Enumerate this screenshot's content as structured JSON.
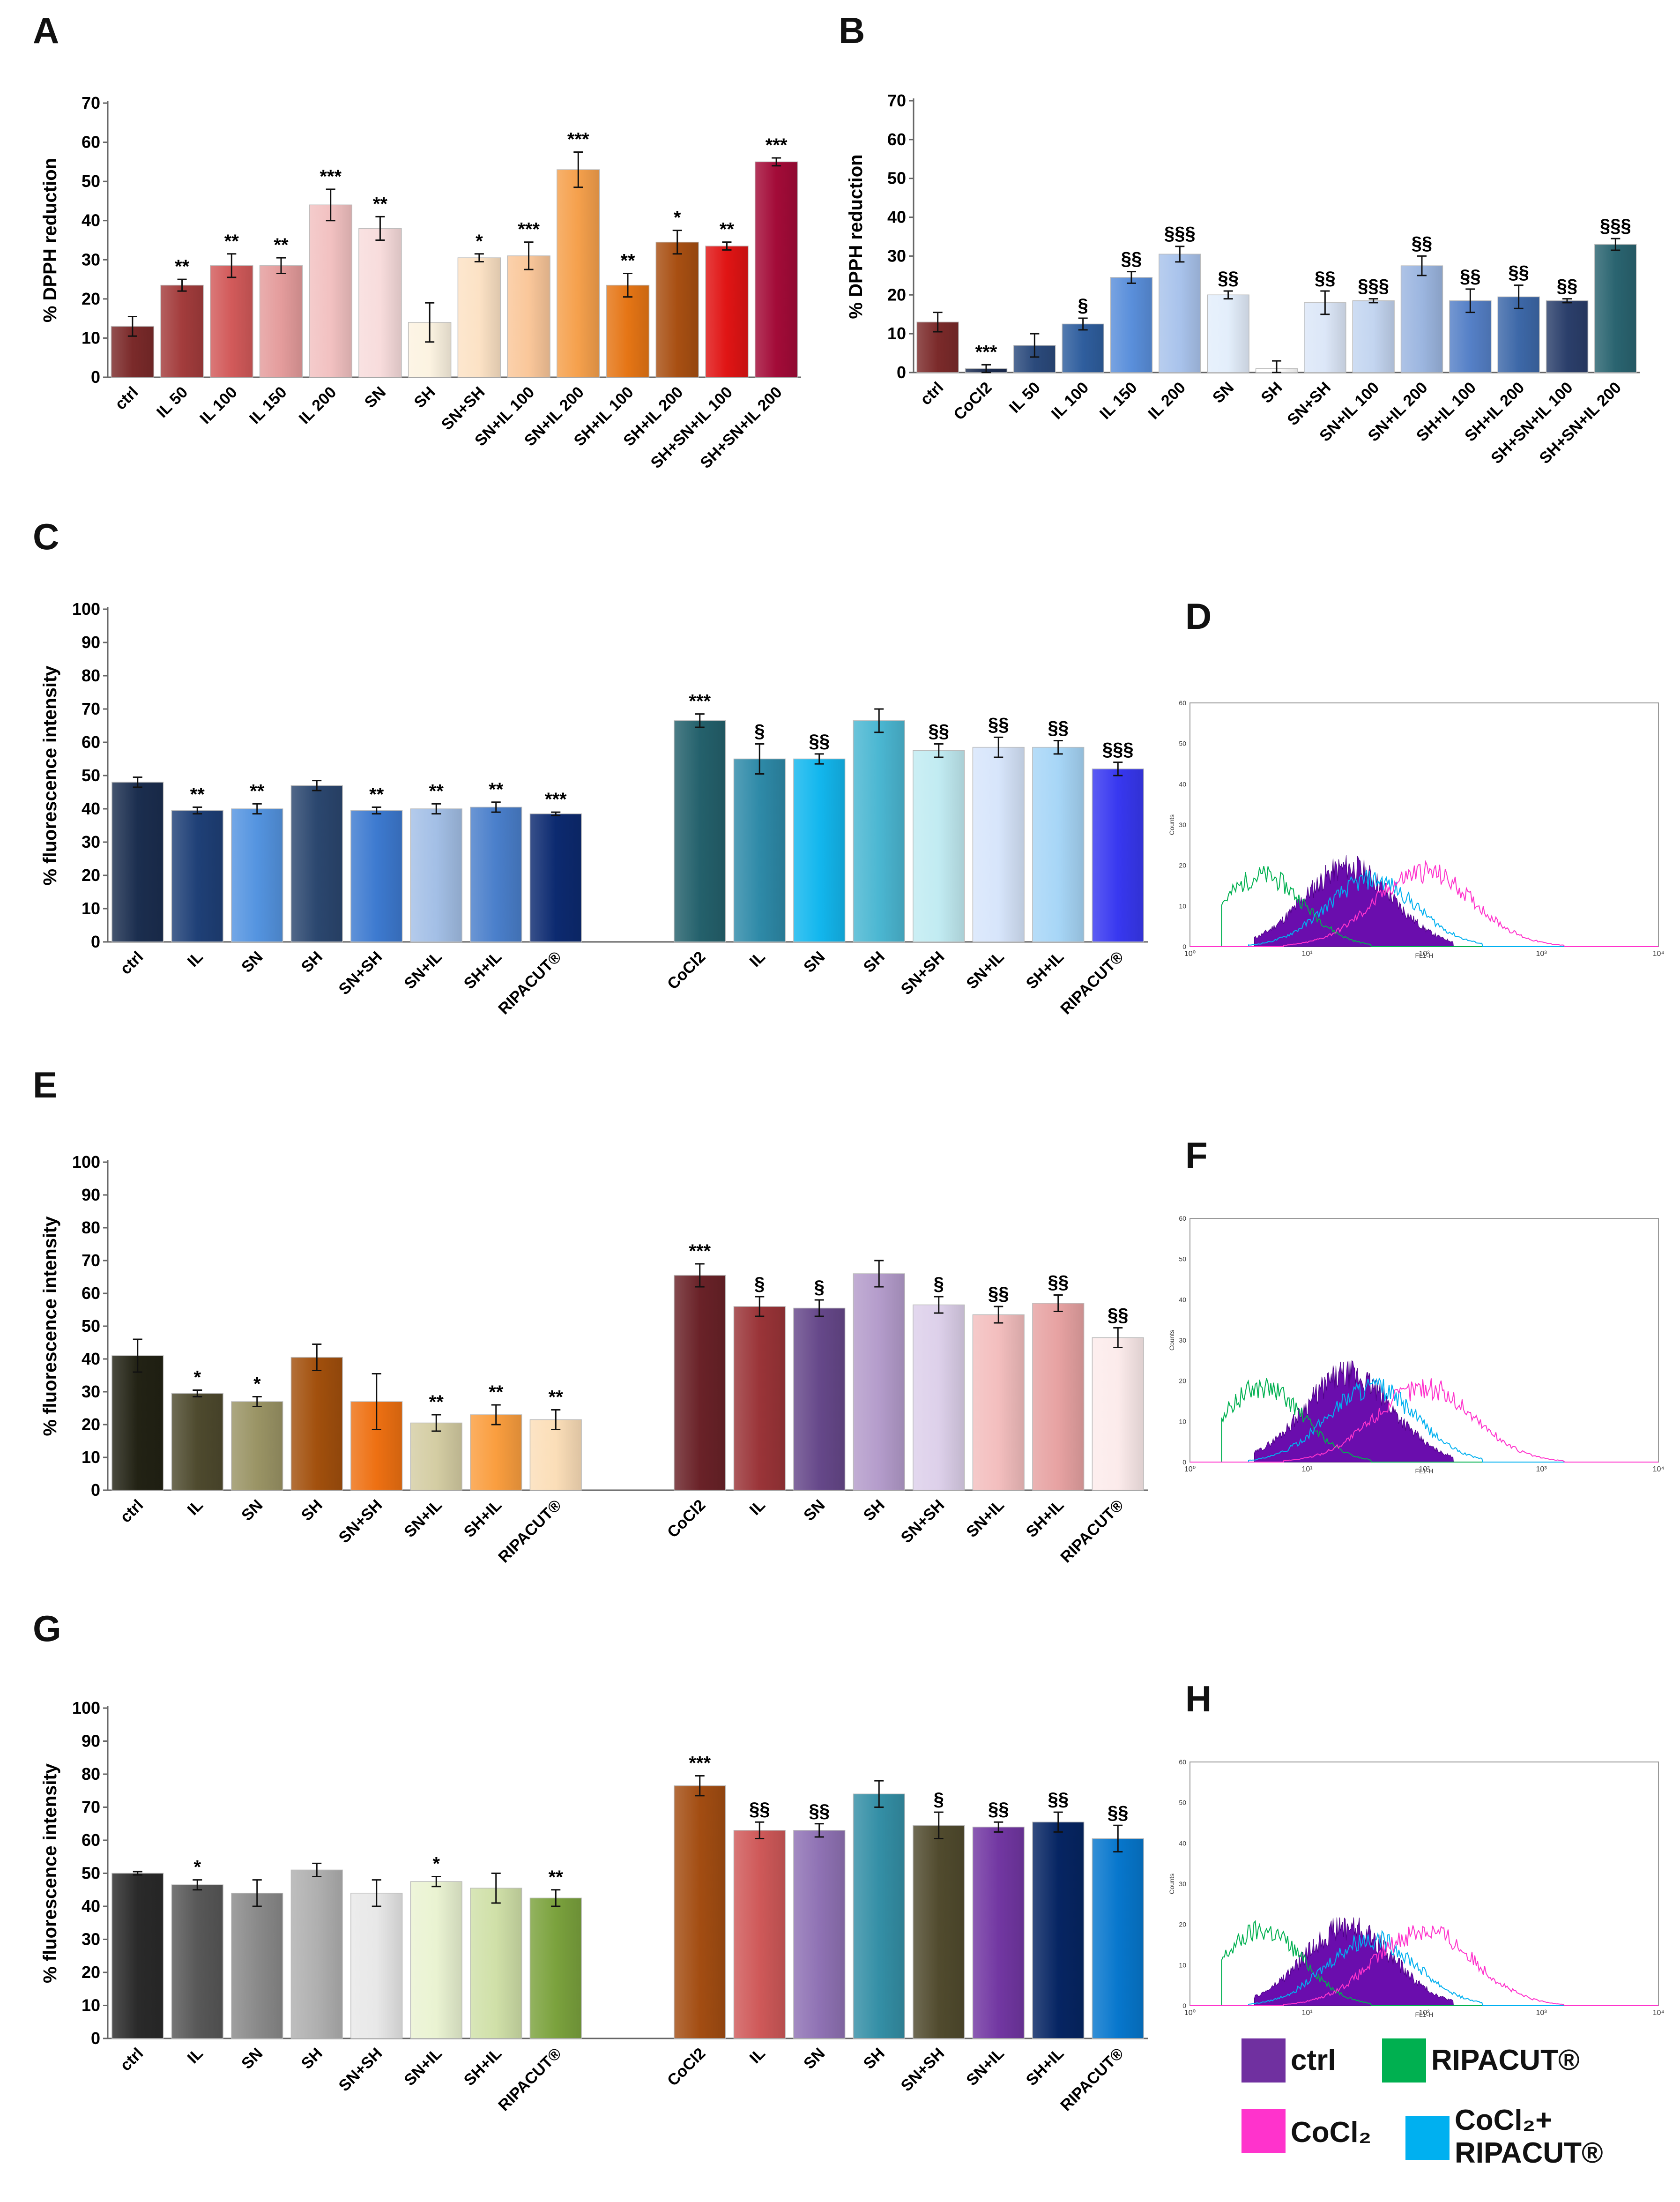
{
  "panels": {
    "A": {
      "label": "A"
    },
    "B": {
      "label": "B"
    },
    "C": {
      "label": "C"
    },
    "D": {
      "label": "D"
    },
    "E": {
      "label": "E"
    },
    "F": {
      "label": "F"
    },
    "G": {
      "label": "G"
    },
    "H": {
      "label": "H"
    }
  },
  "chart_data": [
    {
      "id": "A",
      "type": "bar",
      "ylabel": "% DPPH reduction",
      "ylim": [
        0,
        70
      ],
      "yticks": [
        0,
        10,
        20,
        30,
        40,
        50,
        60,
        70
      ],
      "categories": [
        "ctrl",
        "IL 50",
        "IL 100",
        "IL 150",
        "IL 200",
        "SN",
        "SH",
        "SN+SH",
        "SN+IL 100",
        "SN+IL 200",
        "SH+IL 100",
        "SH+IL 200",
        "SH+SN+IL 100",
        "SH+SN+IL 200"
      ],
      "values": [
        13,
        23.5,
        28.5,
        28.5,
        44,
        38,
        14,
        30.5,
        31,
        53,
        23.5,
        34.5,
        33.5,
        55
      ],
      "errors": [
        2.5,
        1.5,
        3,
        2,
        4,
        3,
        5,
        1,
        3.5,
        4.5,
        3,
        3,
        1,
        1
      ],
      "labels": [
        "",
        "**",
        "**",
        "**",
        "***",
        "**",
        "",
        "*",
        "***",
        "***",
        "**",
        "*",
        "**",
        "***"
      ],
      "colors": [
        "#7B2A2A",
        "#A33C3C",
        "#D25A5A",
        "#E49C9C",
        "#F2C1C1",
        "#F8DCDC",
        "#FCF3E1",
        "#FCE2C5",
        "#FAC79A",
        "#F5A04C",
        "#E57515",
        "#A84F12",
        "#E01414",
        "#A30B38"
      ]
    },
    {
      "id": "B",
      "type": "bar",
      "ylabel": "% DPPH reduction",
      "ylim": [
        0,
        70
      ],
      "yticks": [
        0,
        10,
        20,
        30,
        40,
        50,
        60,
        70
      ],
      "categories": [
        "ctrl",
        "CoCl2",
        "IL 50",
        "IL 100",
        "IL 150",
        "IL 200",
        "SN",
        "SH",
        "SN+SH",
        "SN+IL 100",
        "SN+IL 200",
        "SH+IL 100",
        "SH+IL 200",
        "SH+SN+IL 100",
        "SH+SN+IL 200"
      ],
      "values": [
        13,
        1,
        7,
        12.5,
        24.5,
        30.5,
        20,
        1,
        18,
        18.5,
        27.5,
        18.5,
        19.5,
        18.5,
        33
      ],
      "errors": [
        2.5,
        1,
        3,
        1.5,
        1.5,
        2,
        1,
        2,
        3,
        0.5,
        2.5,
        3,
        3,
        0.5,
        1.5
      ],
      "labels": [
        "",
        "***",
        "",
        "§",
        "§§",
        "§§§",
        "§§",
        "",
        "§§",
        "§§§",
        "§§",
        "§§",
        "§§",
        "§§",
        "§§§"
      ],
      "colors": [
        "#7B2A2A",
        "#1C2D52",
        "#2B4A7C",
        "#2F5E9E",
        "#5A8FDB",
        "#A9C3EC",
        "#E3EEFB",
        "#FFFFFF",
        "#DCE7F8",
        "#C3D5F0",
        "#9CB6E0",
        "#5580C7",
        "#3D68A8",
        "#2B3F6B",
        "#2A6470"
      ]
    },
    {
      "id": "C",
      "type": "bar",
      "ylabel": "% fluorescence intensity",
      "ylim": [
        0,
        100
      ],
      "yticks": [
        0,
        10,
        20,
        30,
        40,
        50,
        60,
        70,
        80,
        90,
        100
      ],
      "categories": [
        "ctrl",
        "IL",
        "SN",
        "SH",
        "SN+SH",
        "SN+IL",
        "SH+IL",
        "RIPACUT®",
        "CoCl2",
        "IL",
        "SN",
        "SH",
        "SN+SH",
        "SN+IL",
        "SH+IL",
        "RIPACUT®"
      ],
      "values": [
        48,
        39.5,
        40,
        47,
        39.5,
        40,
        40.5,
        38.5,
        66.5,
        55,
        55,
        66.5,
        57.5,
        58.5,
        58.5,
        52
      ],
      "errors": [
        1.5,
        1,
        1.5,
        1.5,
        1,
        1.5,
        1.5,
        0.5,
        2,
        4.5,
        1.5,
        3.5,
        2,
        3,
        2,
        2
      ],
      "labels": [
        "",
        "**",
        "**",
        "",
        "**",
        "**",
        "**",
        "***",
        "***",
        "§",
        "§§",
        "",
        "§§",
        "§§",
        "§§",
        "§§§"
      ],
      "colors": [
        "#1B2E4F",
        "#1F4077",
        "#5494E0",
        "#2B476F",
        "#3D7AD0",
        "#A3BFE6",
        "#4A7FCB",
        "#0C2A70",
        "#24616C",
        "#2E8AA8",
        "#13B7EE",
        "#4BB7D2",
        "#C1EBF2",
        "#D7E5FB",
        "#A7D6F7",
        "#3838F0"
      ]
    },
    {
      "id": "E",
      "type": "bar",
      "ylabel": "% fluorescence intensity",
      "ylim": [
        0,
        100
      ],
      "yticks": [
        0,
        10,
        20,
        30,
        40,
        50,
        60,
        70,
        80,
        90,
        100
      ],
      "categories": [
        "ctrl",
        "IL",
        "SN",
        "SH",
        "SN+SH",
        "SN+IL",
        "SH+IL",
        "RIPACUT®",
        "CoCl2",
        "IL",
        "SN",
        "SH",
        "SN+SH",
        "SN+IL",
        "SH+IL",
        "RIPACUT®"
      ],
      "values": [
        41,
        29.5,
        27,
        40.5,
        27,
        20.5,
        23,
        21.5,
        65.5,
        56,
        55.5,
        66,
        56.5,
        53.5,
        57,
        46.5
      ],
      "errors": [
        5,
        1,
        1.5,
        4,
        8.5,
        2.5,
        3,
        3,
        3.5,
        3,
        2.5,
        4,
        2.5,
        2.5,
        2.5,
        3
      ],
      "labels": [
        "",
        "*",
        "*",
        "",
        "",
        "**",
        "**",
        "**",
        "***",
        "§",
        "§",
        "",
        "§",
        "§§",
        "§§",
        "§§"
      ],
      "colors": [
        "#222214",
        "#4E4A2E",
        "#9A9465",
        "#A2500D",
        "#EE7012",
        "#D4CDA3",
        "#FA9E3F",
        "#FBDEB8",
        "#6A2228",
        "#9A3438",
        "#66488A",
        "#B49CCB",
        "#DDD0EA",
        "#F3BEBE",
        "#E7A2A2",
        "#FCEBEB"
      ]
    },
    {
      "id": "G",
      "type": "bar",
      "ylabel": "% fluorescence intensity",
      "ylim": [
        0,
        100
      ],
      "yticks": [
        0,
        10,
        20,
        30,
        40,
        50,
        60,
        70,
        80,
        90,
        100
      ],
      "categories": [
        "ctrl",
        "IL",
        "SN",
        "SH",
        "SN+SH",
        "SN+IL",
        "SH+IL",
        "RIPACUT®",
        "CoCl2",
        "IL",
        "SN",
        "SH",
        "SN+SH",
        "SN+IL",
        "SH+IL",
        "RIPACUT®"
      ],
      "values": [
        50,
        46.5,
        44,
        51,
        44,
        47.5,
        45.5,
        42.5,
        76.5,
        63,
        63,
        74,
        64.5,
        64,
        65.5,
        60.5
      ],
      "errors": [
        0.5,
        1.5,
        4,
        2,
        4,
        1.5,
        4.5,
        2.5,
        3,
        2.5,
        2,
        4,
        4,
        1.5,
        3,
        4
      ],
      "labels": [
        "",
        "*",
        "",
        "",
        "",
        "*",
        "",
        "**",
        "***",
        "§§",
        "§§",
        "",
        "§",
        "§§",
        "§§",
        "§§"
      ],
      "colors": [
        "#2A2A2A",
        "#585858",
        "#8A8A8A",
        "#B0B0B0",
        "#E8E8E8",
        "#EAF3D2",
        "#D0E0A8",
        "#7BA23D",
        "#A34D12",
        "#CF5959",
        "#8F72B4",
        "#348FA6",
        "#514B2E",
        "#7237A2",
        "#062563",
        "#0777CD"
      ]
    }
  ],
  "flow_axes": {
    "y_ticks": [
      "0",
      "10",
      "20",
      "30",
      "40",
      "50",
      "60"
    ],
    "y_label": "Counts",
    "x_ticks": [
      "10⁰",
      "10¹",
      "10²",
      "10³",
      "10⁴"
    ],
    "x_label": "FL1-H"
  },
  "legend": {
    "items": [
      {
        "label": "ctrl",
        "color": "#7030A0"
      },
      {
        "label": "RIPACUT®",
        "color": "#00B050"
      },
      {
        "label": "CoCl₂",
        "color": "#FF33CC"
      },
      {
        "label": "CoCl₂+ RIPACUT®",
        "color": "#00B0F0"
      }
    ]
  }
}
